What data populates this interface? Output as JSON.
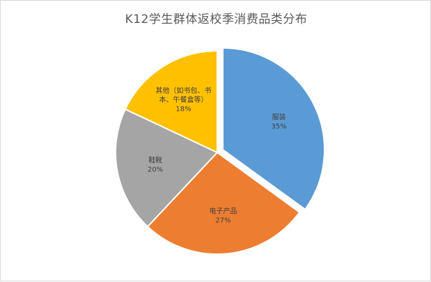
{
  "chart_data": {
    "type": "pie",
    "title": "K12学生群体返校季消费品类分布",
    "slices": [
      {
        "name": "服装",
        "value": 35,
        "label": "35%",
        "color": "#5B9BD5",
        "exploded": true
      },
      {
        "name": "电子产品",
        "value": 27,
        "label": "27%",
        "color": "#ED7D31",
        "exploded": false
      },
      {
        "name": "鞋靴",
        "value": 20,
        "label": "20%",
        "color": "#A5A5A5",
        "exploded": false
      },
      {
        "name": "其他（如书包、书本、午餐盒等）",
        "name_lines": [
          "其他（如书包、书",
          "本、午餐盒等）"
        ],
        "value": 18,
        "label": "18%",
        "color": "#FFC000",
        "exploded": false
      }
    ],
    "legend": "none",
    "start_angle": "12 o'clock",
    "direction": "clockwise"
  }
}
